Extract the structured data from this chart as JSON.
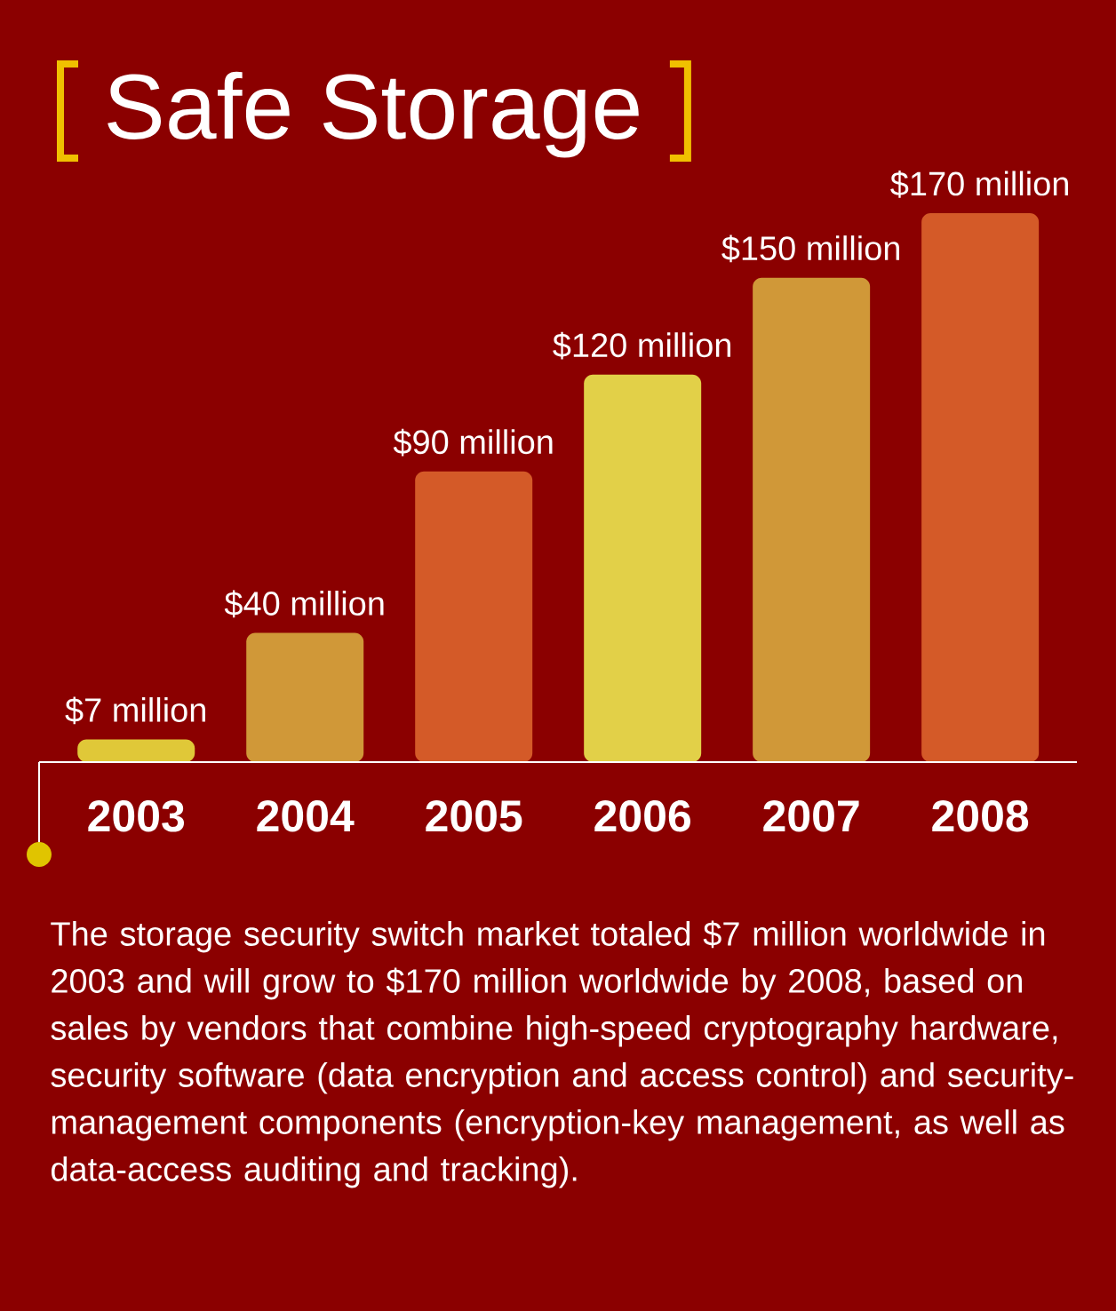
{
  "chart_data": {
    "type": "bar",
    "title": "Safe Storage",
    "categories": [
      "2003",
      "2004",
      "2005",
      "2006",
      "2007",
      "2008"
    ],
    "values": [
      7,
      40,
      90,
      120,
      150,
      170
    ],
    "colors": [
      "#e0c838",
      "#d09838",
      "#d45a28",
      "#e2d048",
      "#d09838",
      "#d45a28"
    ],
    "value_labels": [
      "$7 million",
      "$40 million",
      "$90 million",
      "$120 million",
      "$150 million",
      "$170 million"
    ],
    "tick_labels": "x",
    "annotations": [
      "The storage security switch market totaled $7 million worldwide in 2003 and will grow to $170 million worldwide by 2008, based on sales by vendors that combine high-speed cryptography hardware, security software (data encryption and access control) and security-management components (encryption-key management, as well as data-access auditing and tracking)."
    ]
  }
}
